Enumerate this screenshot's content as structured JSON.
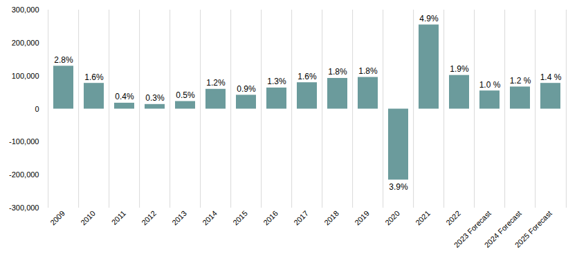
{
  "chart_data": {
    "type": "bar",
    "categories": [
      "2009",
      "2010",
      "2011",
      "2012",
      "2013",
      "2014",
      "2015",
      "2016",
      "2017",
      "2018",
      "2019",
      "2020",
      "2021",
      "2022",
      "2023 Forecast",
      "2024 Forecast",
      "2025 Forecast"
    ],
    "values": [
      130000,
      78000,
      18000,
      14000,
      23000,
      60000,
      42000,
      64000,
      80000,
      93000,
      96000,
      -215000,
      255000,
      102000,
      55000,
      67000,
      78000
    ],
    "annotations": [
      "2.8%",
      "1.6%",
      "0.4%",
      "0.3%",
      "0.5%",
      "1.2%",
      "0.9%",
      "1.3%",
      "1.6%",
      "1.8%",
      "1.8%",
      "3.9%",
      "4.9%",
      "1.9%",
      "1.0 %",
      "1.2 %",
      "1.4 %"
    ],
    "color": "#6b9b9c",
    "ylim": [
      -300000,
      300000
    ],
    "yticks": [
      {
        "value": -300000,
        "label": "-300,000"
      },
      {
        "value": -200000,
        "label": "-200,000"
      },
      {
        "value": -100000,
        "label": "-100,000"
      },
      0,
      {
        "value": 100000,
        "label": "100,000"
      },
      {
        "value": 200000,
        "label": "200,000"
      },
      {
        "value": 300000,
        "label": "300,000"
      }
    ],
    "grid": true
  }
}
